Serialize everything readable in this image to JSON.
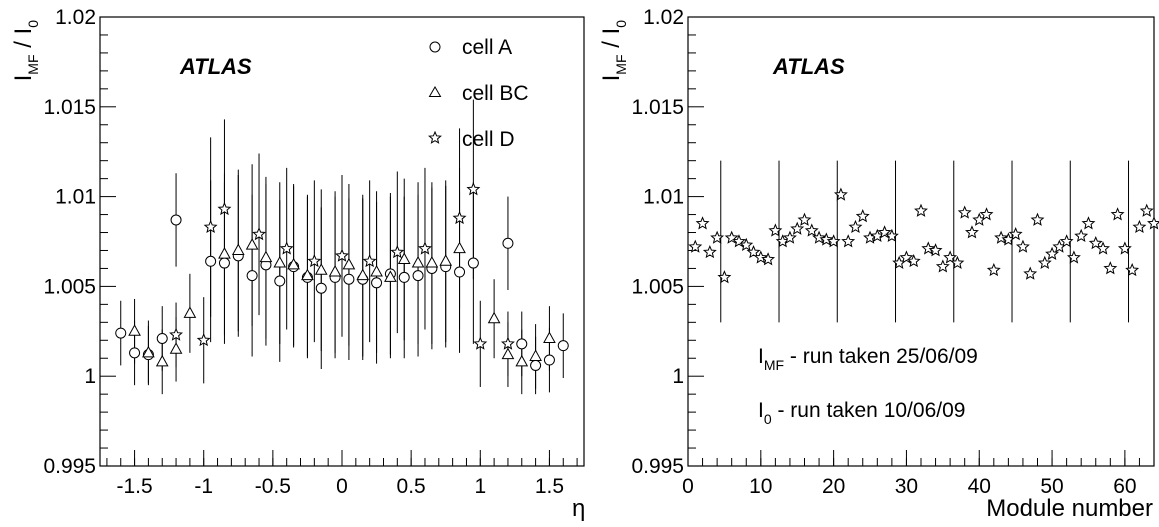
{
  "chart_data": [
    {
      "type": "scatter",
      "label": "ATLAS",
      "xlabel": "η",
      "ylabel": {
        "main": "I",
        "sub": "MF",
        "sep": " / I",
        "sub2": "0"
      },
      "xlim": [
        -1.75,
        1.75
      ],
      "ylim": [
        0.995,
        1.02
      ],
      "xticks": [
        {
          "v": -1.5,
          "t": "-1.5"
        },
        {
          "v": -1,
          "t": "-1"
        },
        {
          "v": -0.5,
          "t": "-0.5"
        },
        {
          "v": 0,
          "t": "0"
        },
        {
          "v": 0.5,
          "t": "0.5"
        },
        {
          "v": 1,
          "t": "1"
        },
        {
          "v": 1.5,
          "t": "1.5"
        }
      ],
      "yticks": [
        {
          "v": 0.995,
          "t": "0.995"
        },
        {
          "v": 1,
          "t": "1"
        },
        {
          "v": 1.005,
          "t": "1.005"
        },
        {
          "v": 1.01,
          "t": "1.01"
        },
        {
          "v": 1.015,
          "t": "1.015"
        },
        {
          "v": 1.02,
          "t": "1.02"
        }
      ],
      "series": [
        {
          "name": "cell A",
          "marker": "circle",
          "points": [
            [
              -1.6,
              1.0024,
              0.0018
            ],
            [
              -1.5,
              1.0013,
              0.0018
            ],
            [
              -1.4,
              1.0012,
              0.0016
            ],
            [
              -1.3,
              1.0021,
              0.0018
            ],
            [
              -1.2,
              1.0087,
              0.0026
            ],
            [
              -0.95,
              1.0064,
              0.0045
            ],
            [
              -0.85,
              1.0063,
              0.0045
            ],
            [
              -0.75,
              1.0067,
              0.0045
            ],
            [
              -0.65,
              1.0056,
              0.0045
            ],
            [
              -0.55,
              1.0062,
              0.0045
            ],
            [
              -0.45,
              1.0053,
              0.0045
            ],
            [
              -0.35,
              1.0061,
              0.0045
            ],
            [
              -0.25,
              1.0055,
              0.0045
            ],
            [
              -0.15,
              1.0049,
              0.0045
            ],
            [
              -0.05,
              1.0055,
              0.0045
            ],
            [
              0.05,
              1.0054,
              0.0045
            ],
            [
              0.15,
              1.0054,
              0.0045
            ],
            [
              0.25,
              1.0052,
              0.0045
            ],
            [
              0.35,
              1.0057,
              0.0045
            ],
            [
              0.45,
              1.0055,
              0.0045
            ],
            [
              0.55,
              1.0056,
              0.0045
            ],
            [
              0.65,
              1.006,
              0.0045
            ],
            [
              0.75,
              1.0061,
              0.0045
            ],
            [
              0.85,
              1.0058,
              0.0045
            ],
            [
              0.95,
              1.0063,
              0.0045
            ],
            [
              1.2,
              1.0074,
              0.0026
            ],
            [
              1.3,
              1.0018,
              0.0018
            ],
            [
              1.4,
              1.0006,
              0.0016
            ],
            [
              1.5,
              1.0009,
              0.0018
            ],
            [
              1.6,
              1.0017,
              0.0018
            ]
          ]
        },
        {
          "name": "cell BC",
          "marker": "triangle",
          "points": [
            [
              -1.5,
              1.0025,
              0.0018
            ],
            [
              -1.4,
              1.0013,
              0.0018
            ],
            [
              -1.3,
              1.0008,
              0.0018
            ],
            [
              -1.2,
              1.0015,
              0.0018
            ],
            [
              -1.1,
              1.0035,
              0.0022
            ],
            [
              -0.85,
              1.0068,
              0.0045
            ],
            [
              -0.75,
              1.007,
              0.0045
            ],
            [
              -0.65,
              1.0073,
              0.0045
            ],
            [
              -0.55,
              1.0066,
              0.0045
            ],
            [
              -0.45,
              1.0063,
              0.0045
            ],
            [
              -0.35,
              1.0062,
              0.0045
            ],
            [
              -0.25,
              1.0056,
              0.0045
            ],
            [
              -0.15,
              1.0059,
              0.0045
            ],
            [
              -0.05,
              1.0058,
              0.0045
            ],
            [
              0.05,
              1.0062,
              0.0045
            ],
            [
              0.15,
              1.0056,
              0.0045
            ],
            [
              0.25,
              1.0058,
              0.0045
            ],
            [
              0.35,
              1.0055,
              0.0045
            ],
            [
              0.45,
              1.0065,
              0.0045
            ],
            [
              0.55,
              1.0063,
              0.0045
            ],
            [
              0.65,
              1.0063,
              0.0045
            ],
            [
              0.75,
              1.0064,
              0.0045
            ],
            [
              0.85,
              1.0071,
              0.0045
            ],
            [
              1.1,
              1.0032,
              0.0022
            ],
            [
              1.2,
              1.0012,
              0.0018
            ],
            [
              1.3,
              1.0008,
              0.0018
            ],
            [
              1.4,
              1.0011,
              0.0018
            ],
            [
              1.5,
              1.0021,
              0.0018
            ]
          ]
        },
        {
          "name": "cell D",
          "marker": "star",
          "points": [
            [
              -1.2,
              1.0023,
              0.0018
            ],
            [
              -1.0,
              1.002,
              0.0024
            ],
            [
              -0.95,
              1.0083,
              0.005
            ],
            [
              -0.85,
              1.0093,
              0.005
            ],
            [
              -0.6,
              1.0079,
              0.0045
            ],
            [
              -0.4,
              1.0071,
              0.0045
            ],
            [
              -0.2,
              1.0064,
              0.0045
            ],
            [
              0.0,
              1.0067,
              0.0045
            ],
            [
              0.2,
              1.0064,
              0.0045
            ],
            [
              0.4,
              1.0069,
              0.0045
            ],
            [
              0.6,
              1.0071,
              0.0045
            ],
            [
              0.85,
              1.0088,
              0.005
            ],
            [
              0.95,
              1.0104,
              0.005
            ],
            [
              1.0,
              1.0018,
              0.0024
            ],
            [
              1.2,
              1.0018,
              0.0018
            ]
          ]
        }
      ]
    },
    {
      "type": "scatter",
      "label": "ATLAS",
      "xlabel": "Module number",
      "ylabel": {
        "main": "I",
        "sub": "MF",
        "sep": " / I",
        "sub2": "0"
      },
      "xlim": [
        0,
        64
      ],
      "ylim": [
        0.995,
        1.02
      ],
      "xticks": [
        {
          "v": 0,
          "t": "0"
        },
        {
          "v": 10,
          "t": "10"
        },
        {
          "v": 20,
          "t": "20"
        },
        {
          "v": 30,
          "t": "30"
        },
        {
          "v": 40,
          "t": "40"
        },
        {
          "v": 50,
          "t": "50"
        },
        {
          "v": 60,
          "t": "60"
        }
      ],
      "yticks": [
        {
          "v": 0.995,
          "t": "0.995"
        },
        {
          "v": 1,
          "t": "1"
        },
        {
          "v": 1.005,
          "t": "1.005"
        },
        {
          "v": 1.01,
          "t": "1.01"
        },
        {
          "v": 1.015,
          "t": "1.015"
        },
        {
          "v": 1.02,
          "t": "1.02"
        }
      ],
      "error_bars": [
        {
          "x": 4.5,
          "low": 1.003,
          "high": 1.012
        },
        {
          "x": 12.5,
          "low": 1.003,
          "high": 1.012
        },
        {
          "x": 20.5,
          "low": 1.003,
          "high": 1.012
        },
        {
          "x": 28.5,
          "low": 1.003,
          "high": 1.012
        },
        {
          "x": 36.5,
          "low": 1.003,
          "high": 1.012
        },
        {
          "x": 44.5,
          "low": 1.003,
          "high": 1.012
        },
        {
          "x": 52.5,
          "low": 1.003,
          "high": 1.012
        },
        {
          "x": 60.5,
          "low": 1.003,
          "high": 1.012
        }
      ],
      "series": [
        {
          "name": "",
          "marker": "star",
          "points": [
            [
              1,
              1.0072
            ],
            [
              2,
              1.0085
            ],
            [
              3,
              1.0069
            ],
            [
              4,
              1.0077
            ],
            [
              5,
              1.0055
            ],
            [
              6,
              1.0077
            ],
            [
              7,
              1.0075
            ],
            [
              8,
              1.0073
            ],
            [
              9,
              1.0069
            ],
            [
              10,
              1.0066
            ],
            [
              11,
              1.0065
            ],
            [
              12,
              1.0081
            ],
            [
              13,
              1.0075
            ],
            [
              14,
              1.0077
            ],
            [
              15,
              1.0082
            ],
            [
              16,
              1.0087
            ],
            [
              17,
              1.0081
            ],
            [
              18,
              1.0077
            ],
            [
              19,
              1.0076
            ],
            [
              20,
              1.0075
            ],
            [
              21,
              1.0101
            ],
            [
              22,
              1.0075
            ],
            [
              23,
              1.0083
            ],
            [
              24,
              1.0089
            ],
            [
              25,
              1.0077
            ],
            [
              26,
              1.0078
            ],
            [
              27,
              1.008
            ],
            [
              28,
              1.0078
            ],
            [
              29,
              1.0063
            ],
            [
              30,
              1.0066
            ],
            [
              31,
              1.0064
            ],
            [
              32,
              1.0092
            ],
            [
              33,
              1.0071
            ],
            [
              34,
              1.007
            ],
            [
              35,
              1.0061
            ],
            [
              36,
              1.0066
            ],
            [
              37,
              1.0063
            ],
            [
              38,
              1.0091
            ],
            [
              39,
              1.008
            ],
            [
              40,
              1.0087
            ],
            [
              41,
              1.009
            ],
            [
              42,
              1.0059
            ],
            [
              43,
              1.0077
            ],
            [
              44,
              1.0076
            ],
            [
              45,
              1.0079
            ],
            [
              46,
              1.0072
            ],
            [
              47,
              1.0057
            ],
            [
              48,
              1.0087
            ],
            [
              49,
              1.0063
            ],
            [
              50,
              1.0068
            ],
            [
              51,
              1.0072
            ],
            [
              52,
              1.0075
            ],
            [
              53,
              1.0066
            ],
            [
              54,
              1.0078
            ],
            [
              55,
              1.0085
            ],
            [
              56,
              1.0074
            ],
            [
              57,
              1.0071
            ],
            [
              58,
              1.006
            ],
            [
              59,
              1.009
            ],
            [
              60,
              1.0071
            ],
            [
              61,
              1.0059
            ],
            [
              62,
              1.0083
            ],
            [
              63,
              1.0092
            ],
            [
              64,
              1.0085
            ]
          ]
        }
      ],
      "notes": [
        {
          "main": "I",
          "sub": "MF",
          "rest": " - run taken 25/06/09"
        },
        {
          "main": "I",
          "sub": "0",
          "rest": " - run taken 10/06/09"
        }
      ]
    }
  ]
}
